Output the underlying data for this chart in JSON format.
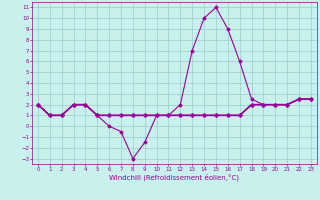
{
  "xlabel": "Windchill (Refroidissement éolien,°C)",
  "bg_color": "#c8f0ec",
  "grid_color": "#99cccc",
  "line_color": "#990099",
  "xlim": [
    -0.5,
    23.5
  ],
  "ylim": [
    -3.5,
    11.5
  ],
  "xticks": [
    0,
    1,
    2,
    3,
    4,
    5,
    6,
    7,
    8,
    9,
    10,
    11,
    12,
    13,
    14,
    15,
    16,
    17,
    18,
    19,
    20,
    21,
    22,
    23
  ],
  "yticks": [
    -3,
    -2,
    -1,
    0,
    1,
    2,
    3,
    4,
    5,
    6,
    7,
    8,
    9,
    10,
    11
  ],
  "series": [
    {
      "x": [
        0,
        1,
        2,
        3,
        4,
        5,
        6,
        7,
        8,
        9,
        10,
        11,
        12,
        13,
        14,
        15,
        16,
        17,
        18,
        19,
        20,
        21,
        22,
        23
      ],
      "y": [
        2,
        1,
        1,
        2,
        2,
        1,
        0,
        -0.5,
        -3,
        -1.5,
        1,
        1,
        1,
        1,
        1,
        1,
        1,
        1,
        2,
        2,
        2,
        2,
        2.5,
        2.5
      ],
      "marker": "D",
      "markersize": 1.5,
      "linewidth": 0.8
    },
    {
      "x": [
        0,
        1,
        2,
        3,
        4,
        5,
        6,
        7,
        8,
        9,
        10,
        11,
        12,
        13,
        14,
        15,
        16,
        17,
        18,
        19,
        20,
        21,
        22,
        23
      ],
      "y": [
        2,
        1,
        1,
        2,
        2,
        1,
        1,
        1,
        1,
        1,
        1,
        1,
        2,
        7,
        10,
        11,
        9,
        6,
        2.5,
        2,
        2,
        2,
        2.5,
        2.5
      ],
      "marker": "D",
      "markersize": 1.5,
      "linewidth": 0.8
    },
    {
      "x": [
        0,
        1,
        2,
        3,
        4,
        5,
        6,
        7,
        8,
        9,
        10,
        11,
        12,
        13,
        14,
        15,
        16,
        17,
        18,
        19,
        20,
        21,
        22,
        23
      ],
      "y": [
        2,
        1,
        1,
        2,
        2,
        1,
        1,
        1,
        1,
        1,
        1,
        1,
        1,
        1,
        1,
        1,
        1,
        1,
        2,
        2,
        2,
        2,
        2.5,
        2.5
      ],
      "marker": "D",
      "markersize": 1.5,
      "linewidth": 1.0
    },
    {
      "x": [
        0,
        1,
        2,
        3,
        4,
        5,
        6,
        7,
        8,
        9,
        10,
        11,
        12,
        13,
        14,
        15,
        16,
        17,
        18,
        19,
        20,
        21,
        22,
        23
      ],
      "y": [
        2,
        1,
        1,
        2,
        2,
        1,
        1,
        1,
        1,
        1,
        1,
        1,
        1,
        1,
        1,
        1,
        1,
        1,
        2,
        2,
        2,
        2,
        2.5,
        2.5
      ],
      "marker": "D",
      "markersize": 1.5,
      "linewidth": 1.0
    }
  ]
}
